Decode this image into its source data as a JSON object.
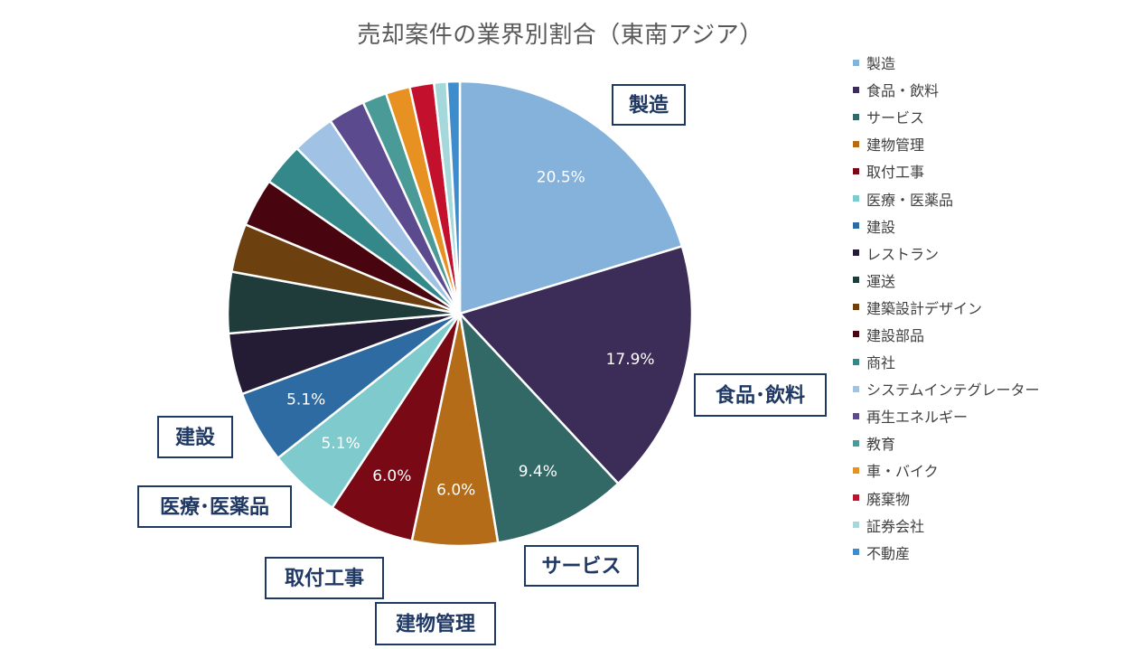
{
  "chart_data": {
    "type": "pie",
    "title": "売却案件の業界別割合（東南アジア）",
    "legend_position": "right",
    "slices": [
      {
        "label": "製造",
        "value": 20.5,
        "color": "#84B2DB",
        "data_label": "20.5%",
        "callout": "製造"
      },
      {
        "label": "食品・飲料",
        "value": 17.9,
        "color": "#3C2C58",
        "data_label": "17.9%",
        "callout": "食品･飲料"
      },
      {
        "label": "サービス",
        "value": 9.4,
        "color": "#326866",
        "data_label": "9.4%",
        "callout": "サービス"
      },
      {
        "label": "建物管理",
        "value": 6.0,
        "color": "#B46C18",
        "data_label": "6.0%",
        "callout": "建物管理"
      },
      {
        "label": "取付工事",
        "value": 6.0,
        "color": "#780915",
        "data_label": "6.0%",
        "callout": "取付工事"
      },
      {
        "label": "医療・医薬品",
        "value": 5.1,
        "color": "#7ECACD",
        "data_label": "5.1%",
        "callout": "医療･医薬品"
      },
      {
        "label": "建設",
        "value": 5.1,
        "color": "#2F6BA3",
        "data_label": "5.1%",
        "callout": "建設"
      },
      {
        "label": "レストラン",
        "value": 4.3,
        "color": "#241B34",
        "data_label": "",
        "callout": ""
      },
      {
        "label": "運送",
        "value": 4.3,
        "color": "#1F3C3B",
        "data_label": "",
        "callout": ""
      },
      {
        "label": "建築設計デザイン",
        "value": 3.4,
        "color": "#6C410F",
        "data_label": "",
        "callout": ""
      },
      {
        "label": "建設部品",
        "value": 3.4,
        "color": "#48050F",
        "data_label": "",
        "callout": ""
      },
      {
        "label": "商社",
        "value": 3.0,
        "color": "#35888A",
        "data_label": "",
        "callout": ""
      },
      {
        "label": "システムインテグレーター",
        "value": 3.0,
        "color": "#A0C2E4",
        "data_label": "",
        "callout": ""
      },
      {
        "label": "再生エネルギー",
        "value": 2.6,
        "color": "#5B4A8D",
        "data_label": "",
        "callout": ""
      },
      {
        "label": "教育",
        "value": 1.7,
        "color": "#4A9A97",
        "data_label": "",
        "callout": ""
      },
      {
        "label": "車・バイク",
        "value": 1.7,
        "color": "#E89123",
        "data_label": "",
        "callout": ""
      },
      {
        "label": "廃棄物",
        "value": 1.7,
        "color": "#C3112D",
        "data_label": "",
        "callout": ""
      },
      {
        "label": "証券会社",
        "value": 0.9,
        "color": "#A5D8DB",
        "data_label": "",
        "callout": ""
      },
      {
        "label": "不動産",
        "value": 0.9,
        "color": "#3E8CCB",
        "data_label": "",
        "callout": ""
      }
    ]
  }
}
